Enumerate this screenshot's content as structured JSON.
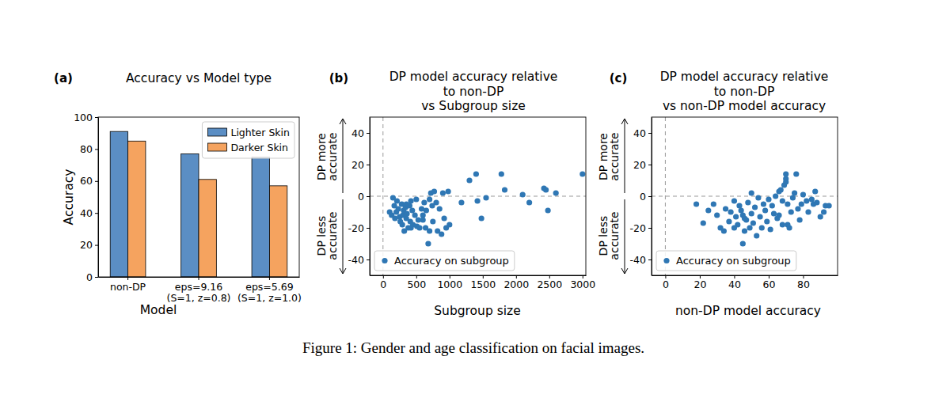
{
  "chart_data": [
    {
      "type": "bar",
      "panel_label": "(a)",
      "title": "Accuracy vs Model type",
      "x_label": "Model",
      "y_label": "Accuracy",
      "categories": [
        "non-DP",
        "eps=9.16\n(S=1, z=0.8)",
        "eps=5.69\n(S=1, z=1.0)"
      ],
      "series": [
        {
          "name": "Lighter Skin",
          "color": "#5b8ec4",
          "values": [
            91,
            77,
            75
          ]
        },
        {
          "name": "Darker Skin",
          "color": "#f5a35f",
          "values": [
            85,
            61,
            57
          ]
        }
      ],
      "ylim": [
        0,
        100
      ],
      "yticks": [
        0,
        20,
        40,
        60,
        80,
        100
      ],
      "legend": "upper right"
    },
    {
      "type": "scatter",
      "panel_label": "(b)",
      "title": "DP model accuracy relative\nto non-DP\nvs Subgroup size",
      "x_label": "Subgroup size",
      "annotations": [
        "DP more\naccurate",
        "DP less\naccurate"
      ],
      "reference_lines": {
        "x": 0,
        "y": 0
      },
      "series": [
        {
          "name": "Accuracy on subgroup",
          "color": "#2f77b4",
          "marker": "o",
          "x": [
            100,
            130,
            150,
            170,
            180,
            200,
            210,
            230,
            250,
            260,
            280,
            290,
            300,
            310,
            320,
            340,
            350,
            360,
            380,
            400,
            410,
            420,
            440,
            450,
            480,
            500,
            510,
            530,
            550,
            580,
            600,
            620,
            640,
            650,
            680,
            700,
            720,
            740,
            750,
            770,
            800,
            820,
            850,
            880,
            900,
            920,
            950,
            980,
            1000,
            1180,
            1300,
            1400,
            1420,
            1480,
            1550,
            1780,
            1830,
            2100,
            2200,
            2420,
            2450,
            2480,
            2600,
            3000,
            700,
            600,
            420,
            350
          ],
          "values": [
            -10,
            -12,
            -1,
            -6,
            -14,
            -10,
            -3,
            -8,
            -13,
            -16,
            -5,
            -18,
            -12,
            -9,
            -22,
            -7,
            -14,
            -11,
            -20,
            -6,
            -16,
            -3,
            -9,
            -18,
            -12,
            -2,
            -19,
            -15,
            -20,
            -8,
            -12,
            -4,
            -20,
            -9,
            -30,
            -22,
            2,
            -6,
            -16,
            3,
            -4,
            -22,
            -8,
            -24,
            2,
            -14,
            -20,
            3,
            -18,
            -4,
            10,
            14,
            -3,
            -14,
            -1,
            14,
            4,
            1,
            -4,
            5,
            4,
            -9,
            2,
            14,
            -2,
            -15,
            -20,
            -5
          ]
        }
      ],
      "xlim": [
        -200,
        3050
      ],
      "xticks": [
        0,
        500,
        1000,
        1500,
        2000,
        2500,
        3000
      ],
      "ylim": [
        -50,
        50
      ],
      "yticks": [
        -40,
        -20,
        0,
        20,
        40
      ],
      "legend": "lower left"
    },
    {
      "type": "scatter",
      "panel_label": "(c)",
      "title": "DP model accuracy relative\nto non-DP\nvs non-DP model accuracy",
      "x_label": "non-DP model accuracy",
      "annotations": [
        "DP more\naccurate",
        "DP less\naccurate"
      ],
      "reference_lines": {
        "x": 0,
        "y": 0
      },
      "series": [
        {
          "name": "Accuracy on subgroup",
          "color": "#2f77b4",
          "marker": "o",
          "x": [
            18,
            22,
            25,
            28,
            30,
            32,
            34,
            35,
            37,
            38,
            40,
            41,
            42,
            43,
            44,
            45,
            45,
            46,
            47,
            48,
            49,
            50,
            50,
            51,
            52,
            53,
            54,
            55,
            56,
            57,
            58,
            59,
            60,
            61,
            62,
            63,
            64,
            65,
            66,
            67,
            68,
            68,
            69,
            70,
            70,
            70,
            71,
            71,
            72,
            73,
            74,
            75,
            76,
            77,
            78,
            79,
            80,
            82,
            83,
            85,
            86,
            87,
            88,
            90,
            92,
            93,
            95,
            46,
            40,
            66
          ],
          "values": [
            -5,
            -17,
            -9,
            -5,
            -12,
            -20,
            -22,
            -8,
            -16,
            -10,
            -3,
            -13,
            -18,
            -6,
            -9,
            -30,
            -12,
            -22,
            -15,
            -4,
            -20,
            -11,
            2,
            -17,
            -7,
            -25,
            -1,
            -13,
            -20,
            -5,
            -9,
            -16,
            -2,
            -21,
            -6,
            -11,
            0,
            -14,
            3,
            4,
            -3,
            -18,
            7,
            11,
            14,
            9,
            -5,
            -18,
            -20,
            -10,
            -1,
            2,
            14,
            -8,
            -15,
            -5,
            1,
            -3,
            -10,
            -2,
            -5,
            3,
            -4,
            -13,
            -10,
            -6,
            -6,
            -14,
            -20,
            -12
          ]
        }
      ],
      "xlim": [
        -8,
        100
      ],
      "xticks": [
        0,
        20,
        40,
        60,
        80
      ],
      "ylim": [
        -50,
        50
      ],
      "yticks": [
        -40,
        -20,
        0,
        20,
        40
      ],
      "legend": "lower left"
    }
  ],
  "caption": "Figure 1: Gender and age classification on facial images."
}
